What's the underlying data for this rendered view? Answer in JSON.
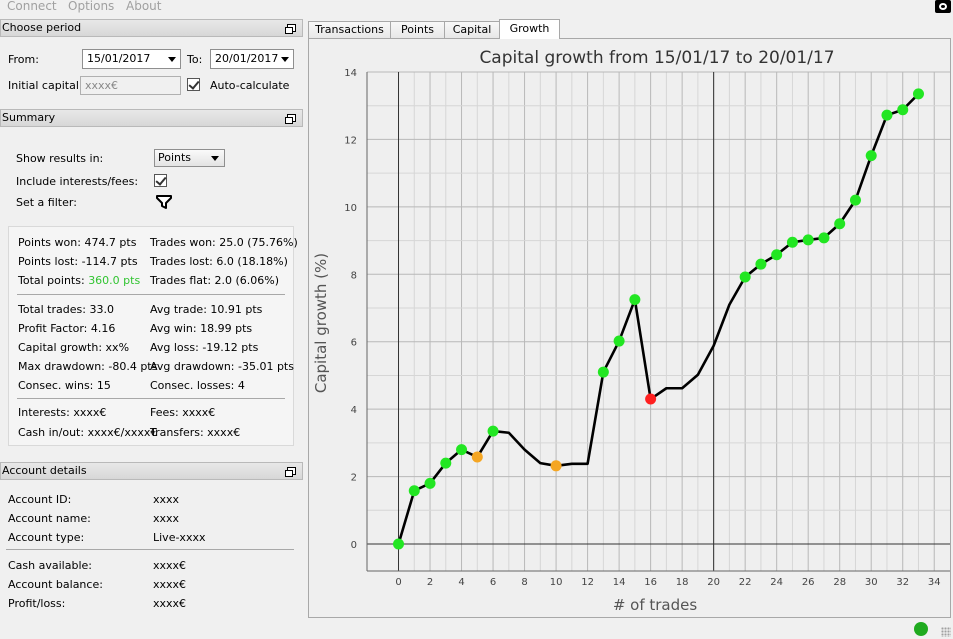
{
  "menu": {
    "items": [
      "Connect",
      "Options",
      "About"
    ]
  },
  "period": {
    "header": "Choose period",
    "from_label": "From:",
    "from_value": "15/01/2017",
    "to_label": "To:",
    "to_value": "20/01/2017",
    "initial_capital_label": "Initial capital:",
    "initial_capital_value": "xxxx€",
    "auto_calc_label": "Auto-calculate"
  },
  "summary": {
    "header": "Summary",
    "show_results_label": "Show results in:",
    "show_results_value": "Points",
    "include_label": "Include interests/fees:",
    "filter_label": "Set a filter:",
    "stats": {
      "points_won": "Points won: 474.7 pts",
      "trades_won": "Trades won: 25.0 (75.76%)",
      "points_lost": "Points lost: -114.7 pts",
      "trades_lost": "Trades lost: 6.0 (18.18%)",
      "total_points_label": "Total points: ",
      "total_points_value": "360.0 pts",
      "trades_flat": "Trades flat: 2.0 (6.06%)",
      "total_trades": "Total trades: 33.0",
      "avg_trade": "Avg trade: 10.91 pts",
      "profit_factor": "Profit Factor: 4.16",
      "avg_win": "Avg win: 18.99 pts",
      "capital_growth": "Capital growth: xx%",
      "avg_loss": "Avg loss: -19.12 pts",
      "max_drawdown": "Max drawdown: -80.4 pts",
      "avg_drawdown": "Avg drawdown: -35.01 pts",
      "consec_wins": "Consec. wins: 15",
      "consec_losses": "Consec. losses: 4",
      "interests": "Interests: xxxx€",
      "fees": "Fees: xxxx€",
      "cash_in_out": "Cash in/out: xxxx€/xxxx€",
      "transfers": "Transfers: xxxx€"
    }
  },
  "account": {
    "header": "Account details",
    "rows": [
      {
        "label": "Account ID:",
        "value": "xxxx"
      },
      {
        "label": "Account name:",
        "value": "xxxx"
      },
      {
        "label": "Account type:",
        "value": "Live-xxxx"
      },
      {
        "label": "Cash available:",
        "value": "xxxx€"
      },
      {
        "label": "Account balance:",
        "value": "xxxx€"
      },
      {
        "label": "Profit/loss:",
        "value": "xxxx€"
      }
    ]
  },
  "tabs": [
    {
      "label": "Transactions"
    },
    {
      "label": "Points"
    },
    {
      "label": "Capital"
    },
    {
      "label": "Growth",
      "active": true
    }
  ],
  "chart_data": {
    "type": "line",
    "title": "Capital growth from 15/01/17 to 20/01/17",
    "xlabel": "# of trades",
    "ylabel": "Capital growth (%)",
    "xlim": [
      -2,
      35
    ],
    "ylim": [
      -0.8,
      14
    ],
    "xticks": [
      0,
      2,
      4,
      6,
      8,
      10,
      12,
      14,
      16,
      18,
      20,
      22,
      24,
      26,
      28,
      30,
      32,
      34
    ],
    "yticks": [
      0,
      2,
      4,
      6,
      8,
      10,
      12,
      14
    ],
    "grid": true,
    "colors": {
      "win": "#22e622",
      "loss": "#ff2020",
      "flat": "#f5a623",
      "line": "#000000"
    },
    "points": [
      {
        "x": 0,
        "y": 0.0,
        "marker": "win"
      },
      {
        "x": 1,
        "y": 1.58,
        "marker": "win"
      },
      {
        "x": 2,
        "y": 1.8,
        "marker": "win"
      },
      {
        "x": 3,
        "y": 2.4,
        "marker": "win"
      },
      {
        "x": 4,
        "y": 2.8,
        "marker": "win"
      },
      {
        "x": 5,
        "y": 2.58,
        "marker": "flat"
      },
      {
        "x": 6,
        "y": 3.35,
        "marker": "win"
      },
      {
        "x": 7,
        "y": 3.3,
        "marker": "none"
      },
      {
        "x": 8,
        "y": 2.8,
        "marker": "none"
      },
      {
        "x": 9,
        "y": 2.4,
        "marker": "none"
      },
      {
        "x": 10,
        "y": 2.32,
        "marker": "flat"
      },
      {
        "x": 11,
        "y": 2.38,
        "marker": "none"
      },
      {
        "x": 12,
        "y": 2.38,
        "marker": "none"
      },
      {
        "x": 13,
        "y": 5.1,
        "marker": "win"
      },
      {
        "x": 14,
        "y": 6.02,
        "marker": "win"
      },
      {
        "x": 15,
        "y": 7.25,
        "marker": "win"
      },
      {
        "x": 16,
        "y": 4.3,
        "marker": "loss"
      },
      {
        "x": 17,
        "y": 4.62,
        "marker": "none"
      },
      {
        "x": 18,
        "y": 4.62,
        "marker": "none"
      },
      {
        "x": 19,
        "y": 5.02,
        "marker": "none"
      },
      {
        "x": 20,
        "y": 5.88,
        "marker": "none"
      },
      {
        "x": 21,
        "y": 7.1,
        "marker": "none"
      },
      {
        "x": 22,
        "y": 7.92,
        "marker": "win"
      },
      {
        "x": 23,
        "y": 8.3,
        "marker": "win"
      },
      {
        "x": 24,
        "y": 8.58,
        "marker": "win"
      },
      {
        "x": 25,
        "y": 8.95,
        "marker": "win"
      },
      {
        "x": 26,
        "y": 9.02,
        "marker": "win"
      },
      {
        "x": 27,
        "y": 9.08,
        "marker": "win"
      },
      {
        "x": 28,
        "y": 9.5,
        "marker": "win"
      },
      {
        "x": 29,
        "y": 10.2,
        "marker": "win"
      },
      {
        "x": 30,
        "y": 11.52,
        "marker": "win"
      },
      {
        "x": 31,
        "y": 12.72,
        "marker": "win"
      },
      {
        "x": 32,
        "y": 12.88,
        "marker": "win"
      },
      {
        "x": 33,
        "y": 13.35,
        "marker": "win"
      }
    ]
  }
}
